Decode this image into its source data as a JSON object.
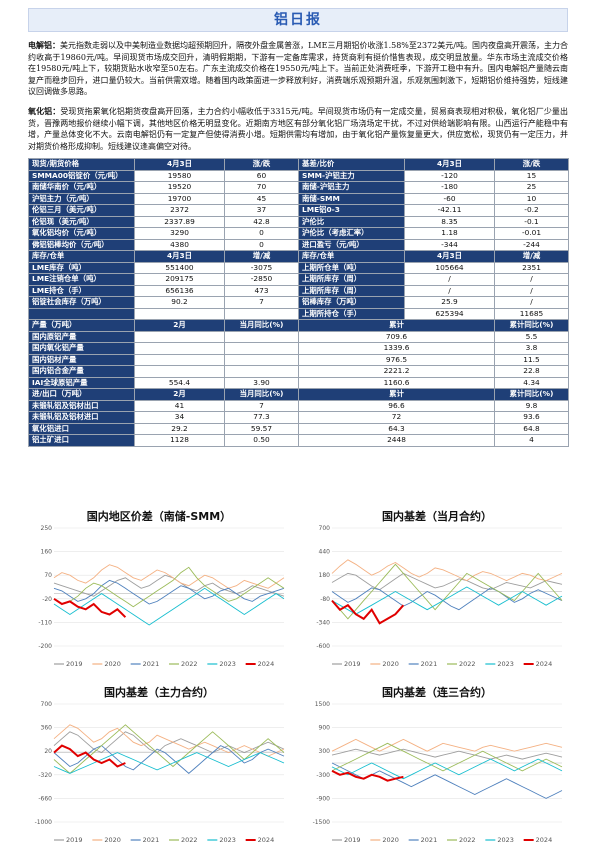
{
  "header": {
    "title": "铝日报"
  },
  "paragraphs": [
    {
      "lead": "电解铝：",
      "text": "美元指数走弱以及中美制造业数据均超预期回升，隔夜外盘金属普涨，LME三月期铝价收涨1.58%至2372美元/吨。国内夜盘高开震荡，主力合约收高于19860元/吨。早间现货市场成交回升，清明假期期，下游有一定备库需求，持货商利有挺价惜售表现，成交明显放量。华东市场主流成交价格在19580元/吨上下，较期货贴水收窄至50左右。广东主流成交价格在19550元/吨上下。当前正处消费旺季，下游开工稳中有升。国内电解铝产量随云南复产而稳步回升，进口量仍较大。当前供需双增。随着国内政策面进一步释放利好，消费端乐观预期升温，乐观氛围刺激下，短期铝价维持强势，短线建议回调做多思路。"
    },
    {
      "lead": "氧化铝：",
      "text": "受现货拖累氧化铝期货夜盘高开回落，主力合约小幅收低于3315元/吨。早间现货市场仍有一定成交量，贸易商表现相对积极，氧化铝厂少量出货，晋豫两地报价继续小幅下调，其他地区价格无明显变化。近期南方地区有部分氧化铝厂场浇场定干扰，不过对供给端影响有限。山西运行产能稳中有增，产量总体变化不大。云南电解铝仍有一定复产但使得消费小增。短期供需均有增加，由于氧化铝产量恢复量更大，供应宽松，现货仍有一定压力，并对期货价格形成抑制。短线建议逢高偏空对待。"
    }
  ],
  "tables": {
    "price": {
      "left_header": [
        "现货/期货价格",
        "4月3日",
        "涨/跌"
      ],
      "right_header": [
        "基差/比价",
        "4月3日",
        "涨/跌"
      ],
      "rows": [
        {
          "l": [
            "SMMA00铝锭价（元/吨）",
            "19580",
            "60"
          ],
          "r": [
            "SMM-沪铝主力",
            "-120",
            "15"
          ]
        },
        {
          "l": [
            "南储华南价（元/吨）",
            "19520",
            "70"
          ],
          "r": [
            "南储-沪铝主力",
            "-180",
            "25"
          ]
        },
        {
          "l": [
            "沪铝主力（元/吨）",
            "19700",
            "45"
          ],
          "r": [
            "南储-SMM",
            "-60",
            "10"
          ]
        },
        {
          "l": [
            "伦铝三月（美元/吨）",
            "2372",
            "37"
          ],
          "r": [
            "LME铝0-3",
            "-42.11",
            "-0.2"
          ]
        },
        {
          "l": [
            "伦铝现（美元/吨）",
            "2337.89",
            "42.8"
          ],
          "r": [
            "沪伦比",
            "8.35",
            "-0.1"
          ]
        },
        {
          "l": [
            "氧化铝均价（元/吨）",
            "3290",
            "0"
          ],
          "r": [
            "沪伦比（考虑汇率）",
            "1.18",
            "-0.01"
          ]
        },
        {
          "l": [
            "佛铝铝棒均价（元/吨）",
            "4380",
            "0"
          ],
          "r": [
            "进口盈亏（元/吨）",
            "-344",
            "-244"
          ]
        }
      ]
    },
    "stock": {
      "left_header": [
        "库存/仓单",
        "4月3日",
        "增/减"
      ],
      "right_header": [
        "库存/仓单",
        "4月3日",
        "增/减"
      ],
      "rows": [
        {
          "l": [
            "LME库存（吨）",
            "551400",
            "-3075"
          ],
          "r": [
            "上期所仓单（吨）",
            "105664",
            "2351"
          ]
        },
        {
          "l": [
            "LME注销仓单（吨）",
            "209175",
            "-2850"
          ],
          "r": [
            "上期所库存（周）",
            "/",
            "/"
          ]
        },
        {
          "l": [
            "LME持仓（手）",
            "656136",
            "473"
          ],
          "r": [
            "上期所库存（周）",
            "/",
            "/"
          ]
        },
        {
          "l": [
            "铝锭社会库存（万吨）",
            "90.2",
            "7"
          ],
          "r": [
            "铝棒库存（万吨）",
            "25.9",
            "/"
          ]
        },
        {
          "l": [
            "",
            "",
            ""
          ],
          "r": [
            "上期所持仓（手）",
            "625394",
            "11685"
          ]
        }
      ]
    },
    "output": {
      "header": [
        "产量（万吨）",
        "2月",
        "当月同比(%)",
        "累计",
        "累计同比(%)"
      ],
      "rows": [
        [
          "国内原铝产量",
          "",
          "",
          "709.6",
          "5.5"
        ],
        [
          "国内氧化铝产量",
          "",
          "",
          "1339.6",
          "3.8"
        ],
        [
          "国内铝材产量",
          "",
          "",
          "976.5",
          "11.5"
        ],
        [
          "国内铝合金产量",
          "",
          "",
          "2221.2",
          "22.8"
        ],
        [
          "IAI全球原铝产量",
          "554.4",
          "3.90",
          "1160.6",
          "4.34"
        ]
      ]
    },
    "trade": {
      "header": [
        "进/出口（万吨）",
        "2月",
        "当月同比(%)",
        "累计",
        "累计同比(%)"
      ],
      "rows": [
        [
          "未锻轧铝及铝材出口",
          "41",
          "7",
          "96.6",
          "9.8"
        ],
        [
          "未锻轧铝及铝材进口",
          "34",
          "77.3",
          "72",
          "93.6"
        ],
        [
          "氧化铝进口",
          "29.2",
          "59.57",
          "64.3",
          "64.8"
        ],
        [
          "铝土矿进口",
          "1128",
          "0.50",
          "2448",
          "4"
        ]
      ]
    }
  },
  "chart_data": [
    {
      "type": "line",
      "title": "国内地区价差（南储-SMM）",
      "series": [
        {
          "name": "2019",
          "color": "#9e9e9e",
          "values": [
            40,
            30,
            20,
            10,
            0,
            -10,
            10,
            30,
            50,
            60,
            40,
            20,
            30,
            50,
            70,
            60,
            40,
            20,
            10,
            30,
            40,
            20,
            10,
            0,
            10,
            30,
            20,
            10,
            0,
            -10
          ]
        },
        {
          "name": "2020",
          "color": "#f4b183",
          "values": [
            60,
            80,
            70,
            50,
            40,
            60,
            90,
            110,
            100,
            80,
            60,
            50,
            70,
            90,
            80,
            60,
            40,
            30,
            50,
            70,
            60,
            40,
            20,
            30,
            50,
            40,
            30,
            20,
            40,
            60
          ]
        },
        {
          "name": "2021",
          "color": "#4f81bd",
          "values": [
            20,
            10,
            -10,
            -30,
            -20,
            0,
            30,
            50,
            40,
            20,
            0,
            -20,
            -40,
            -30,
            -10,
            10,
            30,
            20,
            0,
            -20,
            -10,
            10,
            20,
            0,
            -20,
            -30,
            -10,
            0,
            10,
            20
          ]
        },
        {
          "name": "2022",
          "color": "#9bbb59",
          "values": [
            -20,
            -40,
            -30,
            -10,
            20,
            40,
            30,
            10,
            -10,
            -30,
            -50,
            -30,
            -10,
            10,
            30,
            50,
            80,
            100,
            60,
            30,
            10,
            -10,
            -30,
            -20,
            0,
            20,
            40,
            60,
            40,
            20
          ]
        },
        {
          "name": "2023",
          "color": "#17becf",
          "values": [
            -40,
            -60,
            -80,
            -60,
            -40,
            -20,
            0,
            -20,
            -40,
            -60,
            -80,
            -100,
            -120,
            -100,
            -80,
            -60,
            -40,
            -20,
            0,
            20,
            0,
            -20,
            -40,
            -60,
            -80,
            -60,
            -40,
            -20,
            0,
            -20
          ]
        },
        {
          "name": "2024",
          "color": "#e00000",
          "values": [
            -20,
            -40,
            -30,
            -50,
            -60,
            -40,
            -70,
            -80,
            -60,
            -90
          ]
        }
      ],
      "ylim": [
        -200,
        250
      ]
    },
    {
      "type": "line",
      "title": "国内基差（当月合约）",
      "series": [
        {
          "name": "2019",
          "color": "#9e9e9e",
          "values": [
            100,
            150,
            200,
            180,
            120,
            60,
            20,
            80,
            140,
            200,
            160,
            120,
            80,
            40,
            60,
            100,
            140,
            120,
            80,
            40,
            20,
            60,
            100,
            80,
            60,
            40,
            80,
            120,
            100,
            80
          ]
        },
        {
          "name": "2020",
          "color": "#f4b183",
          "values": [
            200,
            280,
            350,
            300,
            240,
            180,
            220,
            280,
            320,
            260,
            200,
            160,
            200,
            260,
            240,
            200,
            160,
            120,
            180,
            220,
            200,
            160,
            120,
            160,
            200,
            180,
            140,
            120,
            160,
            200
          ]
        },
        {
          "name": "2021",
          "color": "#4f81bd",
          "values": [
            0,
            -60,
            -120,
            -80,
            -20,
            40,
            20,
            -40,
            -100,
            -160,
            -120,
            -60,
            0,
            -40,
            -100,
            -160,
            -200,
            -140,
            -80,
            -20,
            40,
            0,
            -60,
            -120,
            -80,
            -20,
            20,
            -20,
            -60,
            -100
          ]
        },
        {
          "name": "2022",
          "color": "#9bbb59",
          "values": [
            -100,
            -200,
            -300,
            -200,
            -100,
            0,
            100,
            200,
            300,
            200,
            100,
            0,
            -100,
            -200,
            -100,
            0,
            100,
            200,
            150,
            100,
            50,
            0,
            -50,
            -100,
            0,
            100,
            200,
            100,
            0,
            -100
          ]
        },
        {
          "name": "2023",
          "color": "#17becf",
          "values": [
            -100,
            -150,
            -200,
            -250,
            -200,
            -150,
            -100,
            -50,
            0,
            -50,
            -100,
            -150,
            -200,
            -150,
            -100,
            -50,
            0,
            50,
            0,
            -50,
            -100,
            -150,
            -100,
            -50,
            0,
            -50,
            -100,
            -150,
            -100,
            -50
          ]
        },
        {
          "name": "2024",
          "color": "#e00000",
          "values": [
            -100,
            -200,
            -150,
            -250,
            -300,
            -200,
            -350,
            -300,
            -250,
            -150
          ]
        }
      ],
      "ylim": [
        -600,
        700
      ]
    },
    {
      "type": "line",
      "title": "国内基差（主力合约）",
      "series": [
        {
          "name": "2019",
          "color": "#9e9e9e",
          "values": [
            100,
            200,
            300,
            250,
            150,
            50,
            0,
            100,
            200,
            300,
            250,
            150,
            50,
            0,
            100,
            150,
            200,
            150,
            100,
            50,
            0,
            50,
            100,
            50,
            0,
            50,
            100,
            150,
            100,
            50
          ]
        },
        {
          "name": "2020",
          "color": "#f4b183",
          "values": [
            200,
            300,
            400,
            350,
            250,
            150,
            200,
            300,
            350,
            250,
            150,
            100,
            150,
            250,
            200,
            150,
            100,
            50,
            100,
            150,
            100,
            50,
            0,
            50,
            100,
            50,
            0,
            -50,
            0,
            50
          ]
        },
        {
          "name": "2021",
          "color": "#4f81bd",
          "values": [
            0,
            -100,
            -200,
            -150,
            -50,
            50,
            100,
            0,
            -100,
            -200,
            -250,
            -150,
            -50,
            50,
            0,
            -100,
            -200,
            -300,
            -200,
            -100,
            0,
            100,
            50,
            -50,
            -150,
            -100,
            0,
            50,
            0,
            -50
          ]
        },
        {
          "name": "2022",
          "color": "#9bbb59",
          "values": [
            -100,
            -200,
            -300,
            -200,
            -100,
            0,
            100,
            200,
            300,
            400,
            300,
            200,
            100,
            0,
            -100,
            -200,
            -100,
            0,
            100,
            200,
            300,
            200,
            100,
            0,
            -100,
            0,
            100,
            200,
            100,
            0
          ]
        },
        {
          "name": "2023",
          "color": "#17becf",
          "values": [
            -200,
            -250,
            -300,
            -250,
            -200,
            -150,
            -100,
            -50,
            0,
            -50,
            -100,
            -150,
            -200,
            -250,
            -200,
            -150,
            -100,
            -50,
            0,
            -50,
            -100,
            -150,
            -200,
            -150,
            -100,
            -50,
            0,
            -50,
            -100,
            -150
          ]
        },
        {
          "name": "2024",
          "color": "#e00000",
          "values": [
            0,
            100,
            50,
            -50,
            0,
            -100,
            -150,
            -100,
            -200,
            -150
          ]
        }
      ],
      "ylim": [
        -1000,
        700
      ]
    },
    {
      "type": "line",
      "title": "国内基差（连三合约）",
      "series": [
        {
          "name": "2019",
          "color": "#9e9e9e",
          "values": [
            200,
            250,
            300,
            350,
            300,
            250,
            200,
            250,
            300,
            350,
            300,
            250,
            200,
            150,
            200,
            250,
            300,
            250,
            200,
            150,
            100,
            150,
            200,
            150,
            100,
            150,
            200,
            250,
            200,
            150
          ]
        },
        {
          "name": "2020",
          "color": "#f4b183",
          "values": [
            300,
            400,
            500,
            600,
            500,
            400,
            300,
            400,
            500,
            600,
            500,
            400,
            300,
            400,
            500,
            450,
            400,
            350,
            300,
            400,
            450,
            400,
            350,
            300,
            350,
            400,
            450,
            500,
            450,
            400
          ]
        },
        {
          "name": "2021",
          "color": "#4f81bd",
          "values": [
            0,
            -100,
            -200,
            -300,
            -400,
            -300,
            -200,
            -300,
            -400,
            -500,
            -600,
            -500,
            -400,
            -300,
            -400,
            -500,
            -600,
            -700,
            -800,
            -700,
            -600,
            -500,
            -400,
            -500,
            -600,
            -700,
            -800,
            -900,
            -800,
            -700
          ]
        },
        {
          "name": "2022",
          "color": "#9bbb59",
          "values": [
            -200,
            -100,
            0,
            100,
            200,
            300,
            400,
            500,
            400,
            300,
            200,
            100,
            0,
            -100,
            -200,
            -100,
            0,
            100,
            200,
            300,
            200,
            100,
            0,
            -100,
            -200,
            -100,
            0,
            100,
            0,
            -100
          ]
        },
        {
          "name": "2023",
          "color": "#17becf",
          "values": [
            -100,
            -200,
            -300,
            -200,
            -100,
            0,
            -100,
            -200,
            -300,
            -400,
            -300,
            -200,
            -100,
            0,
            -100,
            -200,
            -300,
            -200,
            -100,
            0,
            100,
            0,
            -100,
            -200,
            -100,
            0,
            100,
            0,
            -100,
            -200
          ]
        },
        {
          "name": "2024",
          "color": "#e00000",
          "values": [
            -200,
            -300,
            -250,
            -350,
            -400,
            -300,
            -350,
            -450,
            -400,
            -350
          ]
        }
      ],
      "ylim": [
        -1500,
        1500
      ]
    }
  ]
}
